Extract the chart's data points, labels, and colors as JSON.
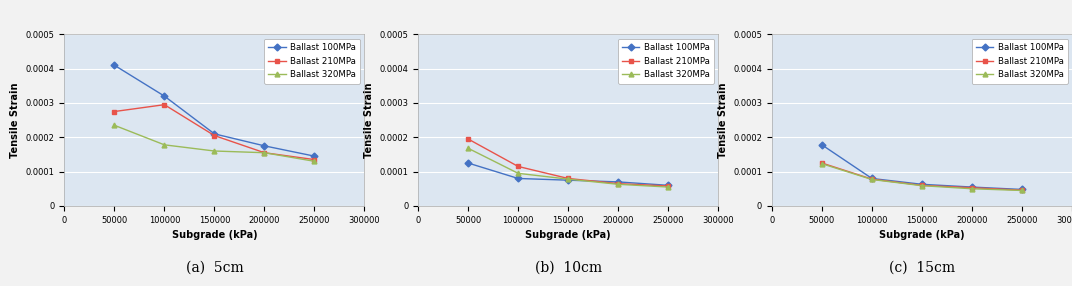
{
  "x": [
    50000,
    100000,
    150000,
    200000,
    250000
  ],
  "charts": [
    {
      "title": "(a)  5cm",
      "series": [
        {
          "label": "Ballast 100MPa",
          "color": "#4472C4",
          "marker": "D",
          "y": [
            0.00041,
            0.00032,
            0.00021,
            0.000175,
            0.000145
          ]
        },
        {
          "label": "Ballast 210MPa",
          "color": "#E8534A",
          "marker": "s",
          "y": [
            0.000275,
            0.000295,
            0.000205,
            0.000155,
            0.000135
          ]
        },
        {
          "label": "Ballast 320MPa",
          "color": "#9BBB59",
          "marker": "^",
          "y": [
            0.000235,
            0.000178,
            0.00016,
            0.000155,
            0.00013
          ]
        }
      ]
    },
    {
      "title": "(b)  10cm",
      "series": [
        {
          "label": "Ballast 100MPa",
          "color": "#4472C4",
          "marker": "D",
          "y": [
            0.000125,
            8e-05,
            7.5e-05,
            7e-05,
            6e-05
          ]
        },
        {
          "label": "Ballast 210MPa",
          "color": "#E8534A",
          "marker": "s",
          "y": [
            0.000195,
            0.000115,
            8e-05,
            6.5e-05,
            5.8e-05
          ]
        },
        {
          "label": "Ballast 320MPa",
          "color": "#9BBB59",
          "marker": "^",
          "y": [
            0.000168,
            9.5e-05,
            7.8e-05,
            6.3e-05,
            5.5e-05
          ]
        }
      ]
    },
    {
      "title": "(c)  15cm",
      "series": [
        {
          "label": "Ballast 100MPa",
          "color": "#4472C4",
          "marker": "D",
          "y": [
            0.000178,
            8e-05,
            6.3e-05,
            5.5e-05,
            4.8e-05
          ]
        },
        {
          "label": "Ballast 210MPa",
          "color": "#E8534A",
          "marker": "s",
          "y": [
            0.000125,
            7.8e-05,
            6e-05,
            5.3e-05,
            4.6e-05
          ]
        },
        {
          "label": "Ballast 320MPa",
          "color": "#9BBB59",
          "marker": "^",
          "y": [
            0.000123,
            7.7e-05,
            5.9e-05,
            5e-05,
            4.5e-05
          ]
        }
      ]
    }
  ],
  "xlabel": "Subgrade (kPa)",
  "ylabel": "Tensile Strain",
  "xlim": [
    0,
    300000
  ],
  "ylim": [
    0,
    0.0005
  ],
  "yticks": [
    0,
    0.0001,
    0.0002,
    0.0003,
    0.0004,
    0.0005
  ],
  "xticks": [
    0,
    50000,
    100000,
    150000,
    200000,
    250000,
    300000
  ],
  "plot_bg": "#dce6f1",
  "fig_bg": "#f2f2f2"
}
